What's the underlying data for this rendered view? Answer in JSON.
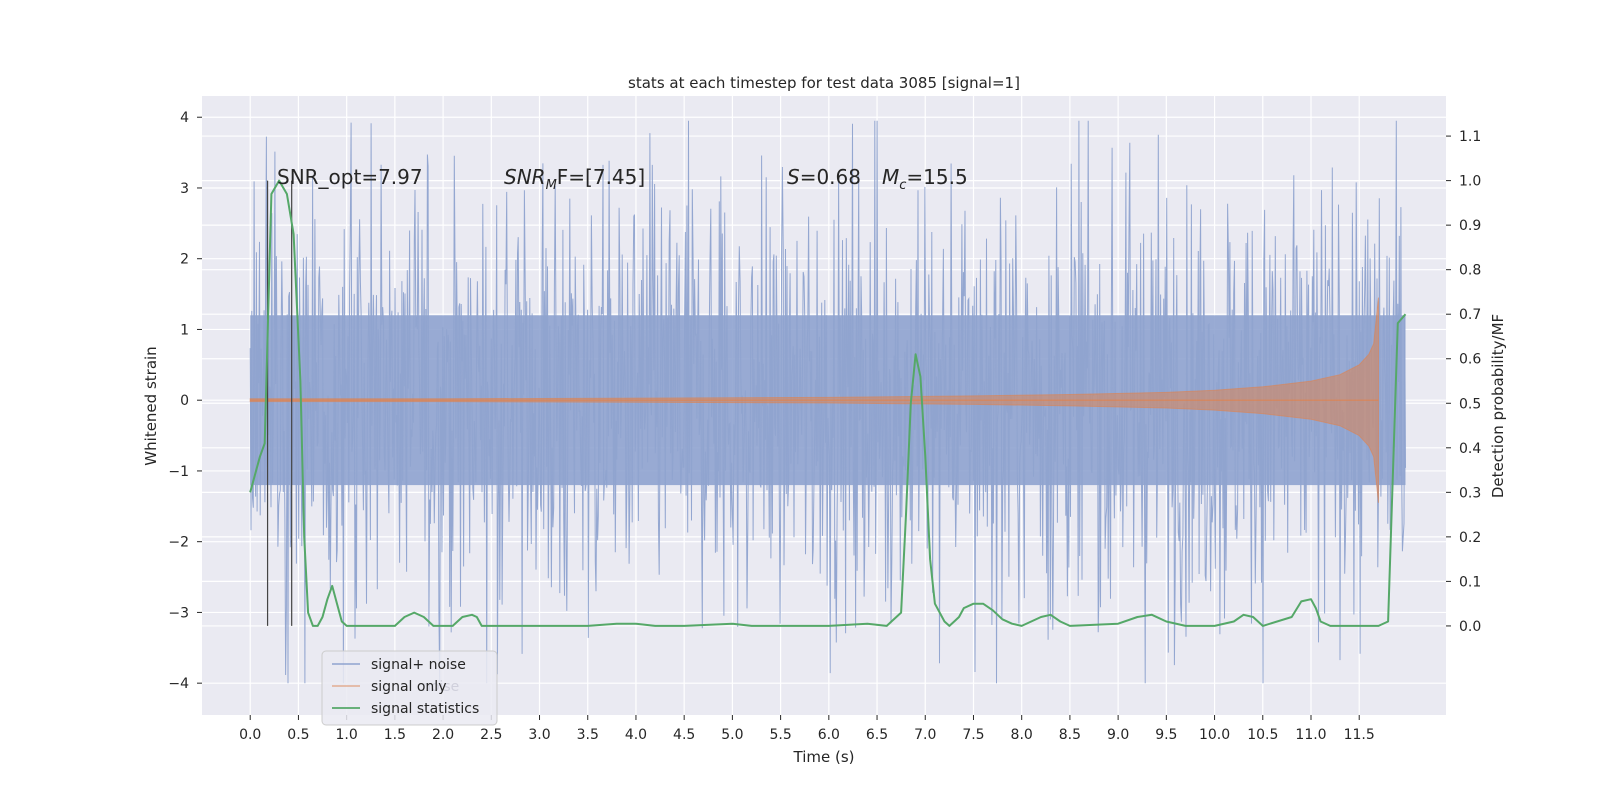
{
  "chart_data": {
    "type": "line",
    "title": "stats at each timestep for test data 3085 [signal=1]",
    "xlabel": "Time (s)",
    "ylabel_left": "Whitened strain",
    "ylabel_right": "Detection probability/MF",
    "xlim": [
      -0.5,
      12.4
    ],
    "ylim_left": [
      -4.45,
      4.3
    ],
    "ylim_right": [
      -0.2,
      1.19
    ],
    "x_ticks": [
      0.0,
      0.5,
      1.0,
      1.5,
      2.0,
      2.5,
      3.0,
      3.5,
      4.0,
      4.5,
      5.0,
      5.5,
      6.0,
      6.5,
      7.0,
      7.5,
      8.0,
      8.5,
      9.0,
      9.5,
      10.0,
      10.5,
      11.0,
      11.5
    ],
    "x_tick_labels": [
      "0.0",
      "0.5",
      "1.0",
      "1.5",
      "2.0",
      "2.5",
      "3.0",
      "3.5",
      "4.0",
      "4.5",
      "5.0",
      "5.5",
      "6.0",
      "6.5",
      "7.0",
      "7.5",
      "8.0",
      "8.5",
      "9.0",
      "9.5",
      "10.0",
      "10.5",
      "11.0",
      "11.5"
    ],
    "y_ticks_left": [
      -4,
      -3,
      -2,
      -1,
      0,
      1,
      2,
      3,
      4
    ],
    "y_tick_labels_left": [
      "−4",
      "−3",
      "−2",
      "−1",
      "0",
      "1",
      "2",
      "3",
      "4"
    ],
    "y_ticks_right": [
      0.0,
      0.1,
      0.2,
      0.3,
      0.4,
      0.5,
      0.6,
      0.7,
      0.8,
      0.9,
      1.0,
      1.1
    ],
    "y_tick_labels_right": [
      "0.0",
      "0.1",
      "0.2",
      "0.3",
      "0.4",
      "0.5",
      "0.6",
      "0.7",
      "0.8",
      "0.9",
      "1.0",
      "1.1"
    ],
    "grid": true,
    "legend_position": "lower-left",
    "series": [
      {
        "name": "signal+ noise",
        "axis": "left",
        "color": "#8fa3cf",
        "envelope": {
          "x_range": [
            0.0,
            11.98
          ],
          "typical_amplitude": 2.0,
          "max": 3.95,
          "min": -4.0
        }
      },
      {
        "name": "signal only",
        "axis": "left",
        "color": "#dd8452",
        "envelope": {
          "x": [
            0.0,
            2.0,
            4.0,
            6.0,
            7.5,
            8.5,
            9.5,
            10.0,
            10.5,
            11.0,
            11.3,
            11.5,
            11.6,
            11.65,
            11.7
          ],
          "amplitude": [
            0.02,
            0.02,
            0.03,
            0.04,
            0.06,
            0.08,
            0.11,
            0.14,
            0.19,
            0.27,
            0.36,
            0.5,
            0.65,
            0.8,
            1.45
          ]
        }
      },
      {
        "name": "signal statistics",
        "axis": "right",
        "color": "#55a868",
        "x": [
          0.0,
          0.1,
          0.15,
          0.22,
          0.3,
          0.38,
          0.45,
          0.52,
          0.56,
          0.6,
          0.65,
          0.7,
          0.75,
          0.8,
          0.85,
          0.9,
          0.95,
          1.0,
          1.1,
          1.5,
          1.6,
          1.7,
          1.8,
          1.9,
          2.0,
          2.1,
          2.2,
          2.3,
          2.35,
          2.4,
          2.5,
          2.6,
          3.0,
          3.5,
          3.8,
          4.0,
          4.2,
          4.5,
          5.0,
          5.2,
          5.5,
          6.0,
          6.4,
          6.6,
          6.75,
          6.8,
          6.85,
          6.9,
          6.95,
          7.0,
          7.05,
          7.1,
          7.2,
          7.25,
          7.3,
          7.35,
          7.4,
          7.5,
          7.6,
          7.7,
          7.8,
          7.9,
          8.0,
          8.2,
          8.3,
          8.4,
          8.5,
          9.0,
          9.2,
          9.35,
          9.5,
          9.7,
          10.0,
          10.2,
          10.3,
          10.4,
          10.5,
          10.8,
          10.9,
          11.0,
          11.05,
          11.1,
          11.2,
          11.5,
          11.7,
          11.8,
          11.9,
          11.98
        ],
        "y": [
          0.3,
          0.38,
          0.41,
          0.97,
          1.0,
          0.97,
          0.88,
          0.55,
          0.2,
          0.03,
          0.0,
          0.0,
          0.02,
          0.06,
          0.09,
          0.05,
          0.01,
          0.0,
          0.0,
          0.0,
          0.02,
          0.03,
          0.02,
          0.0,
          0.0,
          0.0,
          0.02,
          0.025,
          0.02,
          0.0,
          0.0,
          0.0,
          0.0,
          0.0,
          0.005,
          0.005,
          0.0,
          0.0,
          0.005,
          0.0,
          0.0,
          0.0,
          0.005,
          0.0,
          0.03,
          0.25,
          0.5,
          0.61,
          0.56,
          0.38,
          0.15,
          0.05,
          0.01,
          0.0,
          0.01,
          0.02,
          0.04,
          0.05,
          0.05,
          0.035,
          0.015,
          0.005,
          0.0,
          0.02,
          0.025,
          0.01,
          0.0,
          0.005,
          0.02,
          0.025,
          0.01,
          0.0,
          0.0,
          0.01,
          0.025,
          0.02,
          0.0,
          0.02,
          0.055,
          0.06,
          0.04,
          0.01,
          0.0,
          0.0,
          0.0,
          0.01,
          0.68,
          0.7
        ]
      }
    ],
    "vertical_lines": [
      0.18,
      0.43
    ],
    "annotations": {
      "snr_opt": "SNR_opt=7.97",
      "snr_mf_prefix": "SNR",
      "snr_mf_sub": "M",
      "snr_mf_suffix": "F=[7.45]",
      "s_var": "S",
      "s_val": "=0.68",
      "mc_var": "M",
      "mc_sub": "c",
      "mc_val": "=15.5"
    },
    "legend_entries": [
      "signal+ noise",
      "signal only",
      "signal statistics"
    ],
    "legend_ghost_text": "noise"
  }
}
